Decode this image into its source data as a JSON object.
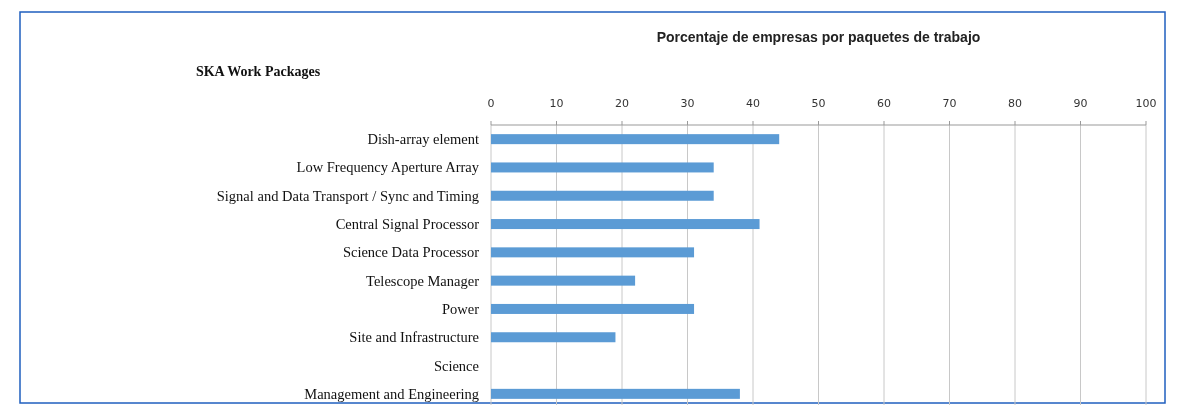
{
  "chart_data": {
    "type": "bar",
    "orientation": "horizontal",
    "title": "Porcentaje de empresas por paquetes de trabajo",
    "annotations": [
      "SKA Work Packages"
    ],
    "categories": [
      "Dish-array element",
      "Low Frequency Aperture Array",
      "Signal and Data Transport / Sync and Timing",
      "Central Signal Processor",
      "Science Data Processor",
      "Telescope Manager",
      "Power",
      "Site and Infrastructure",
      "Science",
      "Management and Engineering"
    ],
    "values": [
      44,
      34,
      34,
      41,
      31,
      22,
      31,
      19,
      null,
      38
    ],
    "color": "#5b9bd5",
    "xlim": [
      0,
      100
    ],
    "xticks": [
      0,
      10,
      20,
      30,
      40,
      50,
      60,
      70,
      80,
      90,
      100
    ],
    "grid": "x"
  }
}
